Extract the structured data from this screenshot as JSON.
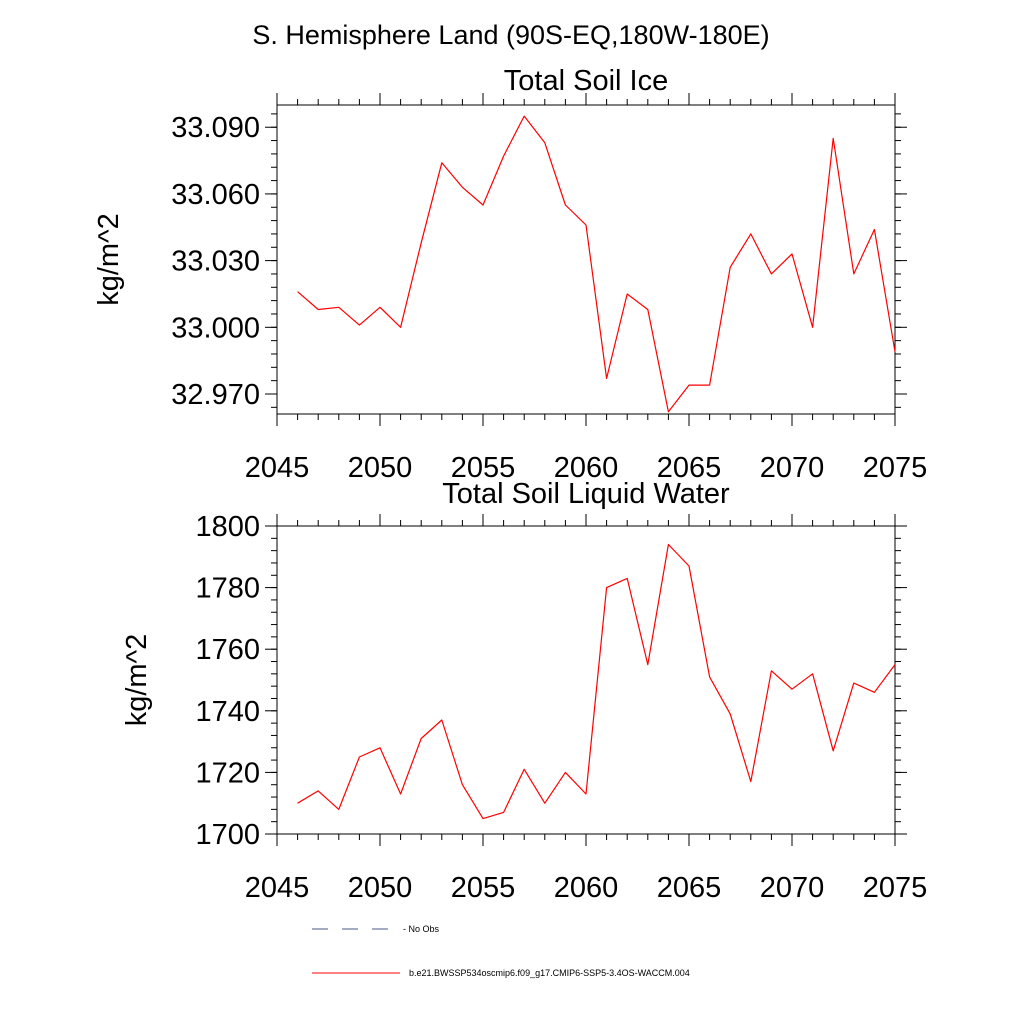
{
  "figure": {
    "suptitle": "S. Hemisphere Land (90S-EQ,180W-180E)"
  },
  "chart_data": [
    {
      "type": "line",
      "title": "Total Soil Ice",
      "xlabel": "",
      "ylabel": "kg/m^2",
      "xlim": [
        2045,
        2075
      ],
      "ylim": [
        32.961,
        33.1
      ],
      "x_ticks": [
        2045,
        2050,
        2055,
        2060,
        2065,
        2070,
        2075
      ],
      "x_tick_labels": [
        "2045",
        "2050",
        "2055",
        "2060",
        "2065",
        "2070",
        "2075"
      ],
      "y_ticks": [
        32.97,
        33.0,
        33.03,
        33.06,
        33.09
      ],
      "y_tick_labels": [
        "32.970",
        "33.000",
        "33.030",
        "33.060",
        "33.090"
      ],
      "y_minor_step": 0.006,
      "grid": false,
      "series": [
        {
          "name": "b.e21.BWSSP534oscmip6.f09_g17.CMIP6-SSP5-3.4OS-WACCM.004",
          "color": "#ff0000",
          "x": [
            2046,
            2047,
            2048,
            2049,
            2050,
            2051,
            2052,
            2053,
            2054,
            2055,
            2056,
            2057,
            2058,
            2059,
            2060,
            2061,
            2062,
            2063,
            2064,
            2065,
            2066,
            2067,
            2068,
            2069,
            2070,
            2071,
            2072,
            2073,
            2074,
            2075
          ],
          "y": [
            33.016,
            33.008,
            33.009,
            33.001,
            33.009,
            33.0,
            33.038,
            33.074,
            33.063,
            33.055,
            33.077,
            33.095,
            33.083,
            33.055,
            33.046,
            32.977,
            33.015,
            33.008,
            32.962,
            32.974,
            32.974,
            33.027,
            33.042,
            33.024,
            33.033,
            33.0,
            33.085,
            33.024,
            33.044,
            32.989
          ]
        }
      ]
    },
    {
      "type": "line",
      "title": "Total Soil Liquid Water",
      "xlabel": "",
      "ylabel": "kg/m^2",
      "xlim": [
        2045,
        2075
      ],
      "ylim": [
        1700,
        1800
      ],
      "x_ticks": [
        2045,
        2050,
        2055,
        2060,
        2065,
        2070,
        2075
      ],
      "x_tick_labels": [
        "2045",
        "2050",
        "2055",
        "2060",
        "2065",
        "2070",
        "2075"
      ],
      "y_ticks": [
        1700,
        1720,
        1740,
        1760,
        1780,
        1800
      ],
      "y_tick_labels": [
        "1700",
        "1720",
        "1740",
        "1760",
        "1780",
        "1800"
      ],
      "y_minor_step": 4,
      "grid": false,
      "series": [
        {
          "name": "b.e21.BWSSP534oscmip6.f09_g17.CMIP6-SSP5-3.4OS-WACCM.004",
          "color": "#ff0000",
          "x": [
            2046,
            2047,
            2048,
            2049,
            2050,
            2051,
            2052,
            2053,
            2054,
            2055,
            2056,
            2057,
            2058,
            2059,
            2060,
            2061,
            2062,
            2063,
            2064,
            2065,
            2066,
            2067,
            2068,
            2069,
            2070,
            2071,
            2072,
            2073,
            2074,
            2075
          ],
          "y": [
            1710,
            1714,
            1708,
            1725,
            1728,
            1713,
            1731,
            1737,
            1716,
            1705,
            1707,
            1721,
            1710,
            1720,
            1713,
            1780,
            1783,
            1755,
            1794,
            1787,
            1751,
            1739,
            1717,
            1753,
            1747,
            1752,
            1727,
            1749,
            1746,
            1755
          ]
        }
      ]
    }
  ],
  "legend": {
    "placement": "bottom",
    "entries": [
      {
        "label": "- No Obs",
        "color": "#4a5a8a",
        "style": "dashed"
      },
      {
        "label": "b.e21.BWSSP534oscmip6.f09_g17.CMIP6-SSP5-3.4OS-WACCM.004",
        "color": "#ff0000",
        "style": "solid"
      }
    ]
  }
}
